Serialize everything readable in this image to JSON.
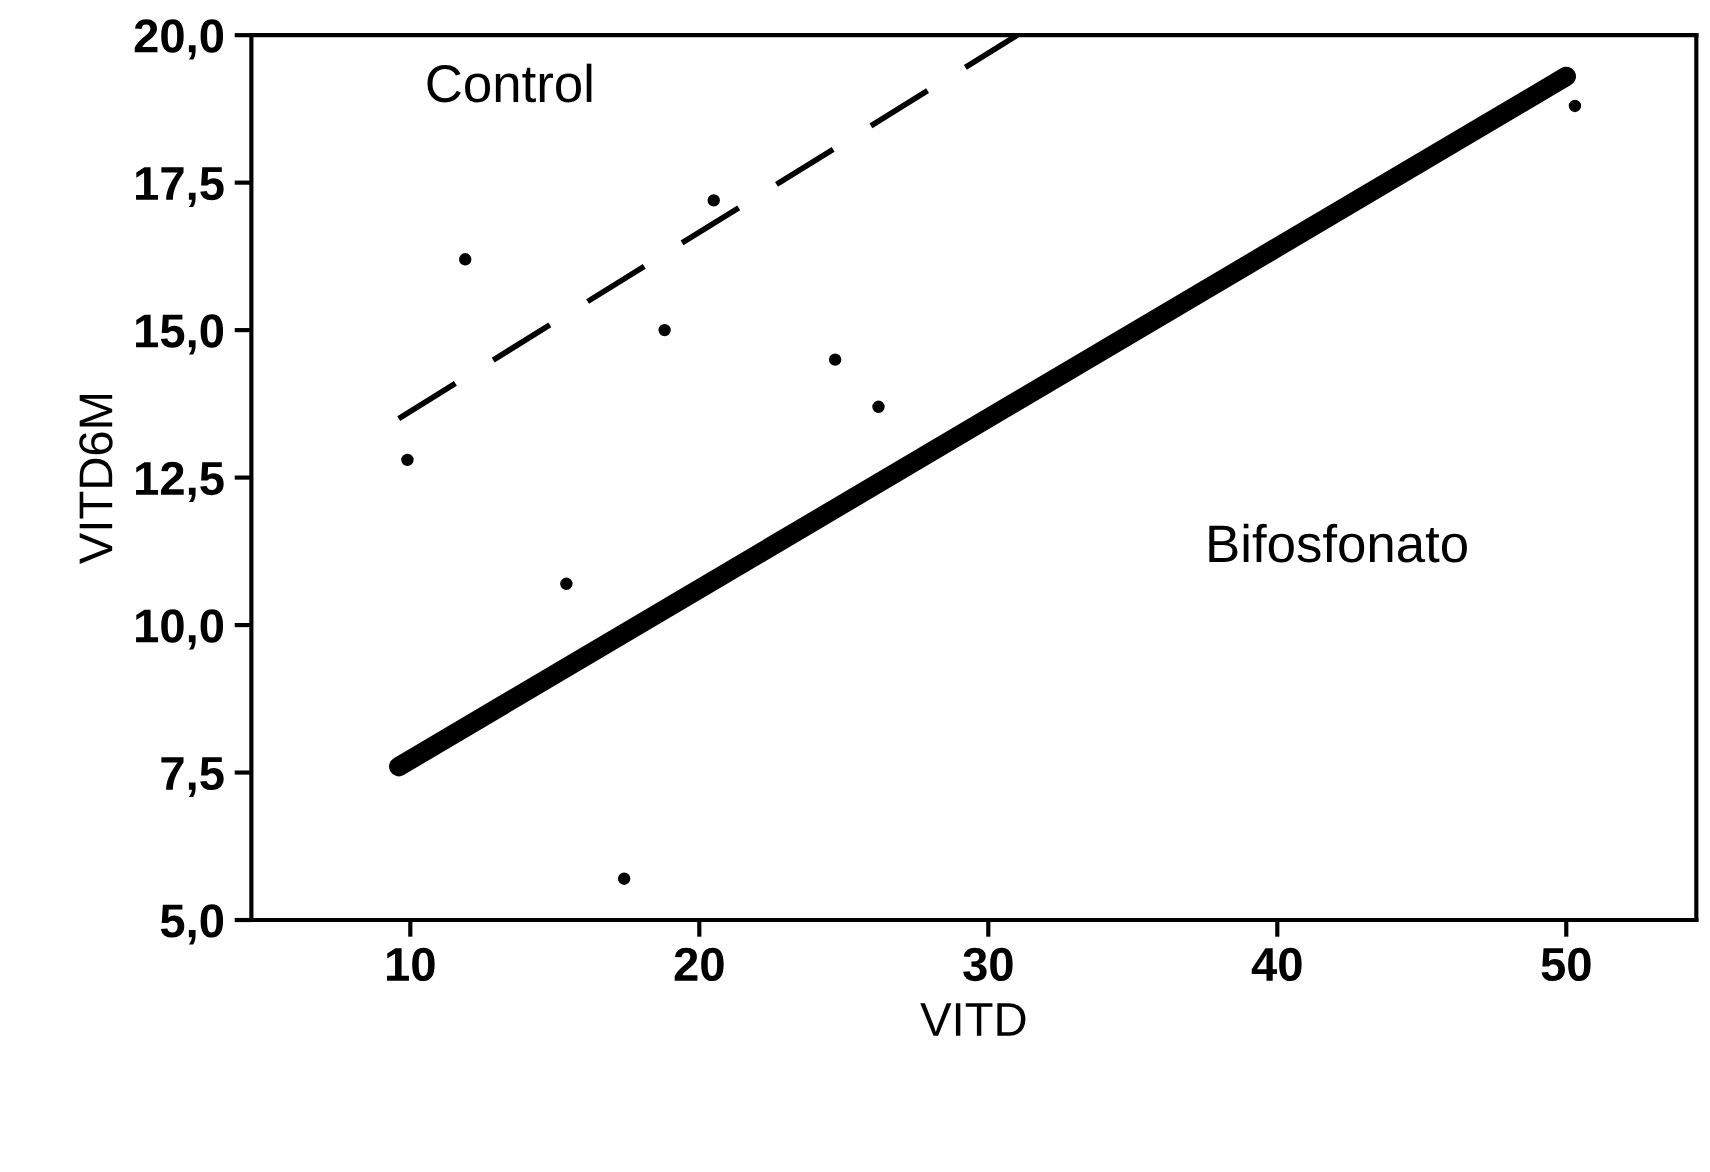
{
  "chart_data": {
    "type": "scatter",
    "xlabel": "VITD",
    "ylabel": "VITD6M",
    "xlim": [
      4.5,
      54.5
    ],
    "ylim": [
      5.0,
      20.0
    ],
    "xticks": [
      10,
      20,
      30,
      40,
      50
    ],
    "yticks": [
      {
        "value": 5.0,
        "label": "5,0"
      },
      {
        "value": 7.5,
        "label": "7,5"
      },
      {
        "value": 10.0,
        "label": "10,0"
      },
      {
        "value": 12.5,
        "label": "12,5"
      },
      {
        "value": 15.0,
        "label": "15,0"
      },
      {
        "value": 17.5,
        "label": "17,5"
      },
      {
        "value": 20.0,
        "label": "20,0"
      }
    ],
    "grid": false,
    "legend": false,
    "series": [
      {
        "color": "#000000",
        "marker": "circle",
        "x": [
          9.9,
          11.9,
          15.4,
          17.4,
          18.8,
          20.5,
          24.7,
          26.2,
          50.3
        ],
        "values": [
          12.8,
          16.2,
          10.7,
          5.7,
          15.0,
          17.2,
          14.5,
          13.7,
          18.8
        ]
      },
      {
        "type": "line",
        "color": "#000000",
        "line_style": "dashed",
        "x": [
          9.6,
          31.0
        ],
        "values": [
          13.5,
          20.0
        ]
      },
      {
        "type": "line",
        "color": "#000000",
        "line_style": "solid",
        "x": [
          9.6,
          50.0
        ],
        "values": [
          7.6,
          19.3
        ]
      }
    ],
    "annotations": [
      "Control",
      "Bifosfonato"
    ]
  }
}
